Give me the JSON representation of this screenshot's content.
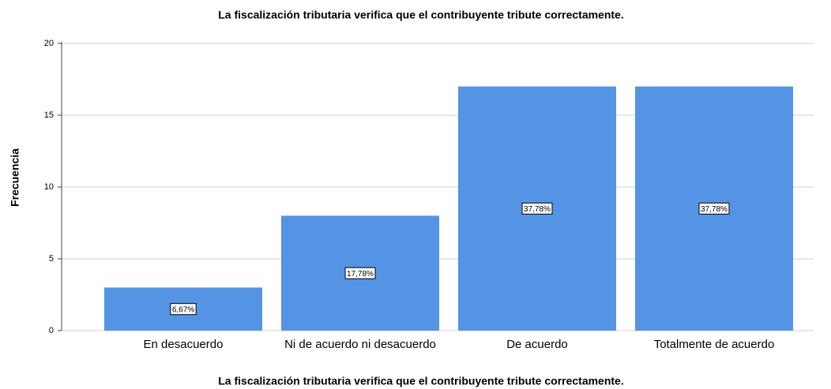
{
  "chart_data": {
    "type": "bar",
    "title": "La fiscalización tributaria verifica que el contribuyente tribute correctamente.",
    "x_label": "La fiscalización tributaria verifica que el contribuyente tribute correctamente.",
    "y_label": "Frecuencia",
    "categories": [
      "En desacuerdo",
      "Ni de acuerdo ni desacuerdo",
      "De acuerdo",
      "Totalmente de acuerdo"
    ],
    "values": [
      3,
      8,
      17,
      17
    ],
    "bar_labels": [
      "6,67%",
      "17,78%",
      "37,78%",
      "37,78%"
    ],
    "color": "#5593e4",
    "ylim": [
      0,
      20
    ],
    "yticks": [
      0,
      5,
      10,
      15,
      20
    ],
    "grid": true
  }
}
